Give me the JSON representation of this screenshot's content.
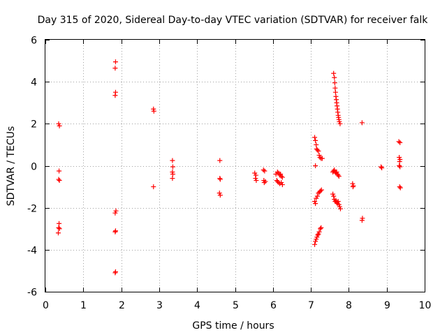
{
  "chart_data": {
    "type": "scatter",
    "title": "Day 315 of 2020, Sidereal Day-to-day VTEC variation (SDTVAR) for receiver falk",
    "xlabel": "GPS time / hours",
    "ylabel": "SDTVAR / TECUs",
    "xlim": [
      0,
      10
    ],
    "ylim": [
      -6,
      6
    ],
    "xticks": [
      "0",
      "1",
      "2",
      "3",
      "4",
      "5",
      "6",
      "7",
      "8",
      "9",
      "10"
    ],
    "yticks": [
      "-6",
      "-4",
      "-2",
      "0",
      "2",
      "4",
      "6"
    ],
    "grid": true,
    "marker": "+",
    "color": "#ff0000",
    "series": [
      {
        "name": "SDTVAR",
        "points": [
          [
            0.35,
            2.0
          ],
          [
            0.37,
            1.9
          ],
          [
            0.36,
            -0.25
          ],
          [
            0.35,
            -0.65
          ],
          [
            0.37,
            -0.7
          ],
          [
            0.36,
            -2.75
          ],
          [
            0.35,
            -2.95
          ],
          [
            0.37,
            -3.0
          ],
          [
            0.34,
            -3.2
          ],
          [
            1.85,
            4.95
          ],
          [
            1.84,
            4.65
          ],
          [
            1.85,
            3.5
          ],
          [
            1.84,
            3.35
          ],
          [
            1.86,
            -2.15
          ],
          [
            1.84,
            -2.25
          ],
          [
            1.85,
            -3.1
          ],
          [
            1.84,
            -3.15
          ],
          [
            1.85,
            -5.05
          ],
          [
            1.84,
            -5.1
          ],
          [
            2.85,
            2.7
          ],
          [
            2.86,
            2.6
          ],
          [
            2.85,
            -1.0
          ],
          [
            3.35,
            0.25
          ],
          [
            3.36,
            -0.05
          ],
          [
            3.35,
            -0.3
          ],
          [
            3.36,
            -0.4
          ],
          [
            3.35,
            -0.6
          ],
          [
            4.6,
            0.25
          ],
          [
            4.6,
            -0.6
          ],
          [
            4.61,
            -0.65
          ],
          [
            4.59,
            -1.3
          ],
          [
            4.61,
            -1.4
          ],
          [
            5.52,
            -0.35
          ],
          [
            5.55,
            -0.45
          ],
          [
            5.54,
            -0.6
          ],
          [
            5.56,
            -0.7
          ],
          [
            5.75,
            -0.2
          ],
          [
            5.78,
            -0.25
          ],
          [
            5.76,
            -0.7
          ],
          [
            5.8,
            -0.75
          ],
          [
            5.77,
            -0.8
          ],
          [
            6.08,
            -0.4
          ],
          [
            6.12,
            -0.3
          ],
          [
            6.15,
            -0.35
          ],
          [
            6.18,
            -0.45
          ],
          [
            6.2,
            -0.4
          ],
          [
            6.22,
            -0.5
          ],
          [
            6.25,
            -0.55
          ],
          [
            6.1,
            -0.7
          ],
          [
            6.12,
            -0.75
          ],
          [
            6.15,
            -0.8
          ],
          [
            6.18,
            -0.85
          ],
          [
            6.22,
            -0.8
          ],
          [
            6.25,
            -0.9
          ],
          [
            7.1,
            1.35
          ],
          [
            7.12,
            1.2
          ],
          [
            7.14,
            1.0
          ],
          [
            7.15,
            0.8
          ],
          [
            7.17,
            0.75
          ],
          [
            7.2,
            0.7
          ],
          [
            7.22,
            0.5
          ],
          [
            7.24,
            0.4
          ],
          [
            7.27,
            0.35
          ],
          [
            7.3,
            0.35
          ],
          [
            7.12,
            0.0
          ],
          [
            7.1,
            -1.7
          ],
          [
            7.12,
            -1.8
          ],
          [
            7.14,
            -1.55
          ],
          [
            7.17,
            -1.45
          ],
          [
            7.2,
            -1.3
          ],
          [
            7.23,
            -1.25
          ],
          [
            7.25,
            -1.2
          ],
          [
            7.28,
            -1.15
          ],
          [
            7.1,
            -3.75
          ],
          [
            7.12,
            -3.6
          ],
          [
            7.14,
            -3.5
          ],
          [
            7.16,
            -3.4
          ],
          [
            7.18,
            -3.3
          ],
          [
            7.2,
            -3.25
          ],
          [
            7.22,
            -3.15
          ],
          [
            7.25,
            -3.0
          ],
          [
            7.27,
            -2.95
          ],
          [
            7.6,
            4.4
          ],
          [
            7.62,
            4.2
          ],
          [
            7.63,
            3.95
          ],
          [
            7.64,
            3.7
          ],
          [
            7.65,
            3.5
          ],
          [
            7.66,
            3.3
          ],
          [
            7.67,
            3.15
          ],
          [
            7.68,
            3.0
          ],
          [
            7.69,
            2.85
          ],
          [
            7.7,
            2.7
          ],
          [
            7.71,
            2.55
          ],
          [
            7.72,
            2.4
          ],
          [
            7.73,
            2.3
          ],
          [
            7.74,
            2.2
          ],
          [
            7.75,
            2.1
          ],
          [
            7.77,
            2.0
          ],
          [
            7.58,
            -0.3
          ],
          [
            7.6,
            -0.25
          ],
          [
            7.62,
            -0.2
          ],
          [
            7.64,
            -0.3
          ],
          [
            7.66,
            -0.35
          ],
          [
            7.68,
            -0.3
          ],
          [
            7.7,
            -0.4
          ],
          [
            7.72,
            -0.45
          ],
          [
            7.74,
            -0.5
          ],
          [
            7.58,
            -1.35
          ],
          [
            7.6,
            -1.45
          ],
          [
            7.62,
            -1.6
          ],
          [
            7.64,
            -1.7
          ],
          [
            7.66,
            -1.65
          ],
          [
            7.68,
            -1.75
          ],
          [
            7.7,
            -1.8
          ],
          [
            7.72,
            -1.7
          ],
          [
            7.74,
            -1.85
          ],
          [
            7.76,
            -1.95
          ],
          [
            7.78,
            -2.05
          ],
          [
            8.1,
            -0.85
          ],
          [
            8.12,
            -0.95
          ],
          [
            8.11,
            -1.0
          ],
          [
            8.35,
            2.05
          ],
          [
            8.36,
            -2.5
          ],
          [
            8.35,
            -2.6
          ],
          [
            8.85,
            -0.05
          ],
          [
            8.87,
            -0.1
          ],
          [
            9.32,
            1.15
          ],
          [
            9.35,
            1.1
          ],
          [
            9.33,
            0.4
          ],
          [
            9.35,
            0.3
          ],
          [
            9.34,
            0.2
          ],
          [
            9.33,
            0.0
          ],
          [
            9.35,
            -0.05
          ],
          [
            9.34,
            -1.0
          ],
          [
            9.36,
            -1.05
          ]
        ]
      }
    ]
  }
}
